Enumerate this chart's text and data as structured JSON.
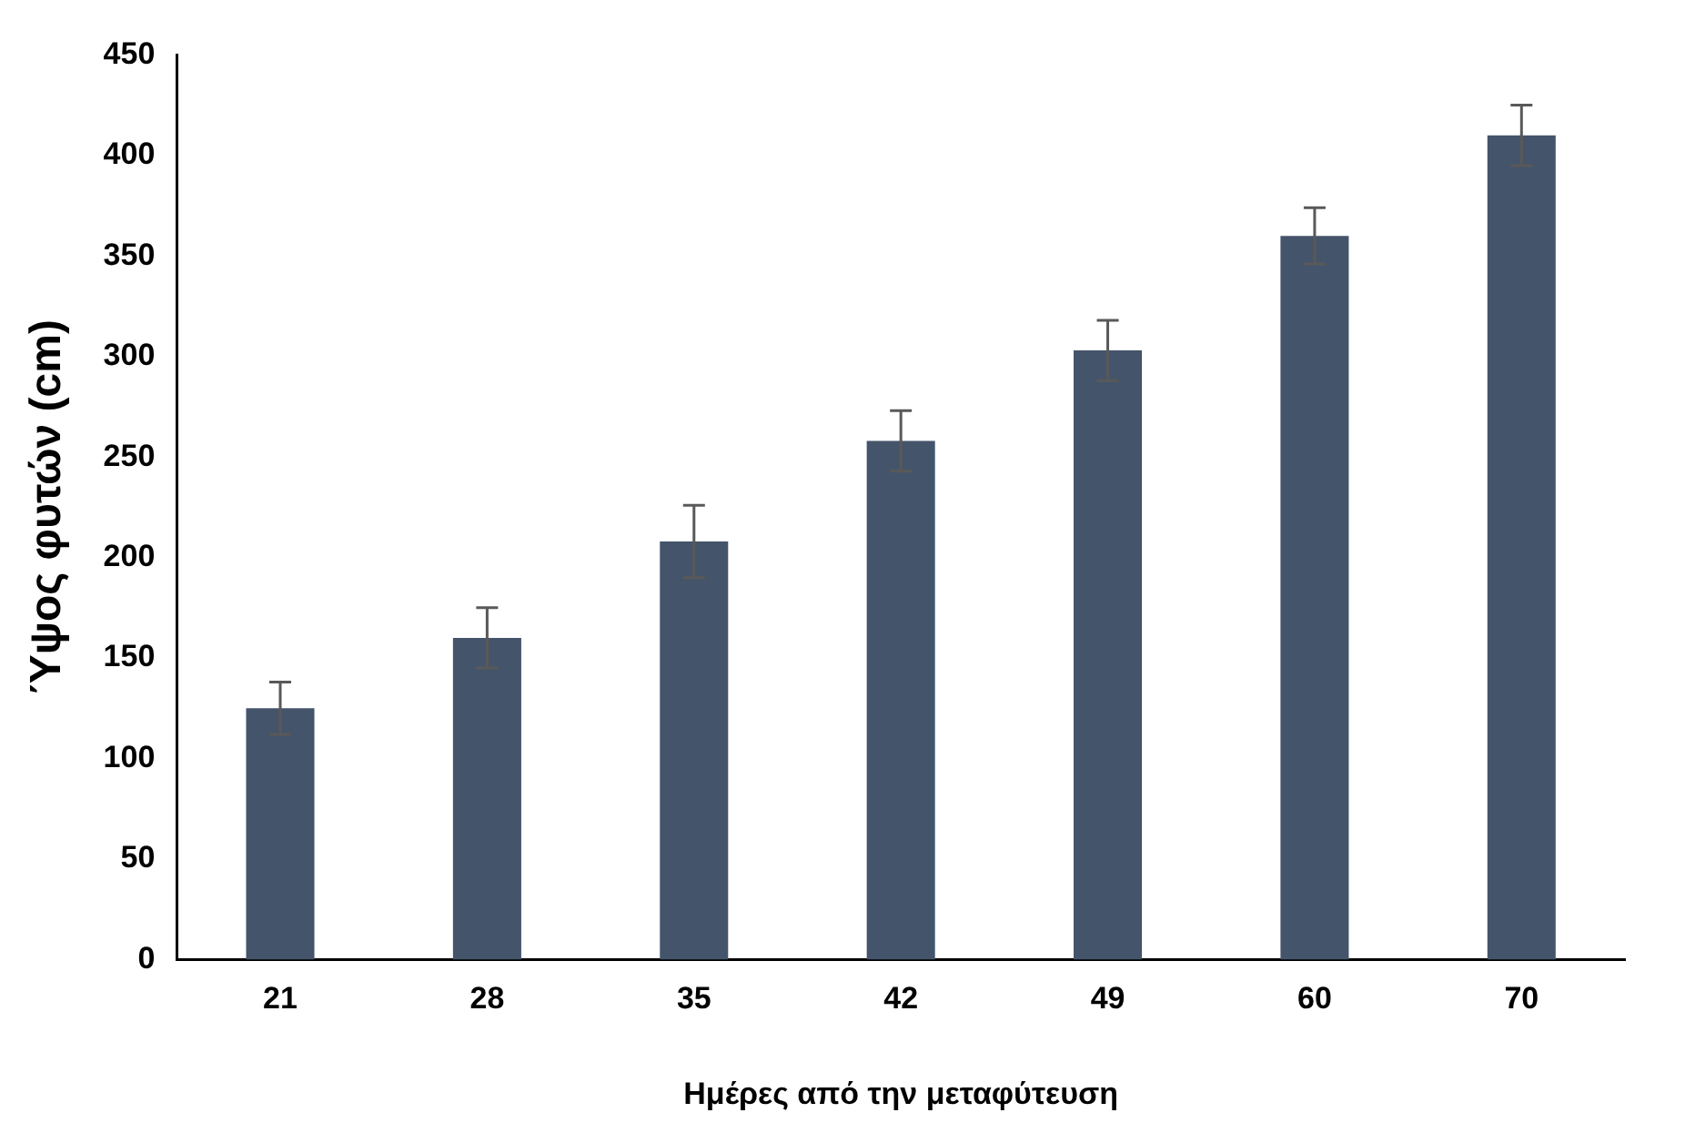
{
  "chart_data": {
    "type": "bar",
    "xlabel": "Ημέρες από την μεταφύτευση",
    "ylabel": "Ύψος φυτών (cm)",
    "categories": [
      "21",
      "28",
      "35",
      "42",
      "49",
      "60",
      "70"
    ],
    "series": [
      {
        "color": "#44546a",
        "values": [
          125,
          160,
          208,
          258,
          303,
          360,
          410
        ],
        "errors": [
          13,
          15,
          18,
          15,
          15,
          14,
          15
        ]
      }
    ],
    "ylim": [
      0,
      450
    ],
    "yticks": [
      0,
      50,
      100,
      150,
      200,
      250,
      300,
      350,
      400,
      450
    ],
    "grid": false,
    "legend": false
  }
}
